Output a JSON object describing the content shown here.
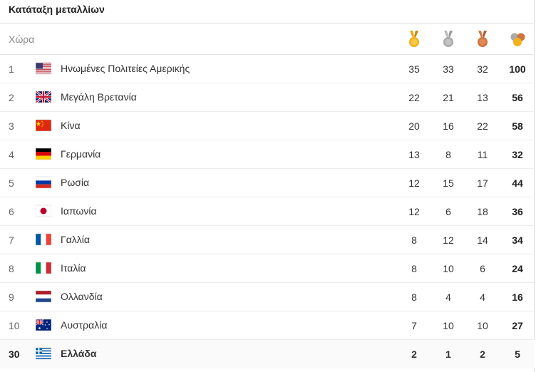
{
  "title": "Κατάταξη μεταλλίων",
  "header": {
    "country_label": "Χώρα"
  },
  "rows": [
    {
      "rank": "1",
      "flag": "us",
      "country": "Ηνωμένες Πολιτείες Αμερικής",
      "gold": "35",
      "silver": "33",
      "bronze": "32",
      "total": "100"
    },
    {
      "rank": "2",
      "flag": "gb",
      "country": "Μεγάλη Βρετανία",
      "gold": "22",
      "silver": "21",
      "bronze": "13",
      "total": "56"
    },
    {
      "rank": "3",
      "flag": "cn",
      "country": "Κίνα",
      "gold": "20",
      "silver": "16",
      "bronze": "22",
      "total": "58"
    },
    {
      "rank": "4",
      "flag": "de",
      "country": "Γερμανία",
      "gold": "13",
      "silver": "8",
      "bronze": "11",
      "total": "32"
    },
    {
      "rank": "5",
      "flag": "ru",
      "country": "Ρωσία",
      "gold": "12",
      "silver": "15",
      "bronze": "17",
      "total": "44"
    },
    {
      "rank": "6",
      "flag": "jp",
      "country": "Ιαπωνία",
      "gold": "12",
      "silver": "6",
      "bronze": "18",
      "total": "36"
    },
    {
      "rank": "7",
      "flag": "fr",
      "country": "Γαλλία",
      "gold": "8",
      "silver": "12",
      "bronze": "14",
      "total": "34"
    },
    {
      "rank": "8",
      "flag": "it",
      "country": "Ιταλία",
      "gold": "8",
      "silver": "10",
      "bronze": "6",
      "total": "24"
    },
    {
      "rank": "9",
      "flag": "nl",
      "country": "Ολλανδία",
      "gold": "8",
      "silver": "4",
      "bronze": "4",
      "total": "16"
    },
    {
      "rank": "10",
      "flag": "au",
      "country": "Αυστραλία",
      "gold": "7",
      "silver": "10",
      "bronze": "10",
      "total": "27"
    },
    {
      "rank": "30",
      "flag": "gr",
      "country": "Ελλάδα",
      "gold": "2",
      "silver": "1",
      "bronze": "2",
      "total": "5"
    }
  ],
  "colors": {
    "gold": "#f0a70a",
    "silver": "#a8a8a8",
    "bronze": "#d0733f"
  }
}
